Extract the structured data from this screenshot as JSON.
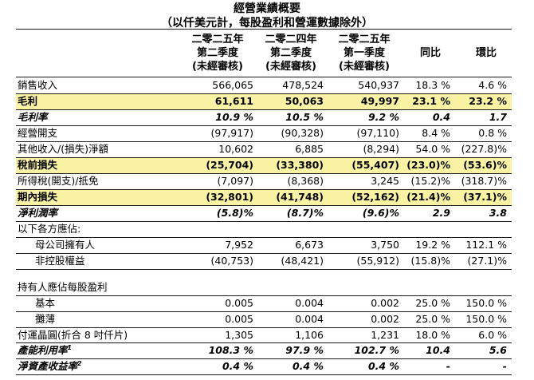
{
  "title": "經營業績概要",
  "subtitle": "（以仟美元計，每股盈利和營運數據除外）",
  "headers": [
    [
      "二零二五年",
      "第二季度",
      "(未經審核)"
    ],
    [
      "二零二四年",
      "第二季度",
      "(未經審核)"
    ],
    [
      "二零二五年",
      "第一季度",
      "(未經審核)"
    ],
    [
      "同比"
    ],
    [
      "環比"
    ]
  ],
  "footnote_marks": {
    "capacity": "1",
    "roe": "2"
  },
  "rows": [
    {
      "label": "銷售收入",
      "cells": [
        "566,065",
        "478,524",
        "540,937",
        "18.3 %",
        "4.6 %"
      ]
    },
    {
      "label": "毛利",
      "cells": [
        "61,611",
        "50,063",
        "49,997",
        "23.1 %",
        "23.2 %"
      ]
    },
    {
      "label": "毛利率",
      "cells": [
        "10.9 %",
        "10.5 %",
        "9.2 %",
        "0.4",
        "1.7"
      ]
    },
    {
      "label": "經營開支",
      "cells": [
        "(97,917)",
        "(90,328)",
        "(97,110)",
        "8.4 %",
        "0.8 %"
      ]
    },
    {
      "label": "其他收入/(損失)淨額",
      "cells": [
        "10,602",
        "6,885",
        "(8,294)",
        "54.0 %",
        "(227.8)%"
      ]
    },
    {
      "label": "稅前損失",
      "cells": [
        "(25,704)",
        "(33,380)",
        "(55,407)",
        "(23.0)%",
        "(53.6)%"
      ]
    },
    {
      "label": "所得稅(開支)/抵免",
      "cells": [
        "(7,097)",
        "(8,368)",
        "3,245",
        "(15.2)%",
        "(318.7)%"
      ]
    },
    {
      "label": "期內損失",
      "cells": [
        "(32,801)",
        "(41,748)",
        "(52,162)",
        "(21.4)%",
        "(37.1)%"
      ]
    },
    {
      "label": "淨利潤率",
      "cells": [
        "(5.8)%",
        "(8.7)%",
        "(9.6)%",
        "2.9",
        "3.8"
      ]
    },
    {
      "label": "以下各方應佔:",
      "cells": [
        "",
        "",
        "",
        "",
        ""
      ]
    },
    {
      "label": "母公司擁有人",
      "cells": [
        "7,952",
        "6,673",
        "3,750",
        "19.2 %",
        "112.1 %"
      ]
    },
    {
      "label": "非控股權益",
      "cells": [
        "(40,753)",
        "(48,421)",
        "(55,912)",
        "(15.8)%",
        "(27.1)%"
      ]
    },
    {
      "label": "",
      "cells": [
        "",
        "",
        "",
        "",
        ""
      ]
    },
    {
      "label": "持有人應佔每股盈利",
      "cells": [
        "",
        "",
        "",
        "",
        ""
      ]
    },
    {
      "label": "基本",
      "cells": [
        "0.005",
        "0.004",
        "0.002",
        "25.0 %",
        "150.0 %"
      ]
    },
    {
      "label": "攤薄",
      "cells": [
        "0.005",
        "0.004",
        "0.002",
        "25.0 %",
        "150.0 %"
      ]
    },
    {
      "label": "付運晶圓(折合 8 吋仟片)",
      "cells": [
        "1,305",
        "1,106",
        "1,231",
        "18.0 %",
        "6.0 %"
      ]
    },
    {
      "label": "產能利用率",
      "cells": [
        "108.3 %",
        "97.9 %",
        "102.7 %",
        "10.4",
        "5.6"
      ]
    },
    {
      "label": "淨資產收益率",
      "cells": [
        "0.4 %",
        "0.4 %",
        "0.4 %",
        "-",
        "-"
      ]
    }
  ]
}
